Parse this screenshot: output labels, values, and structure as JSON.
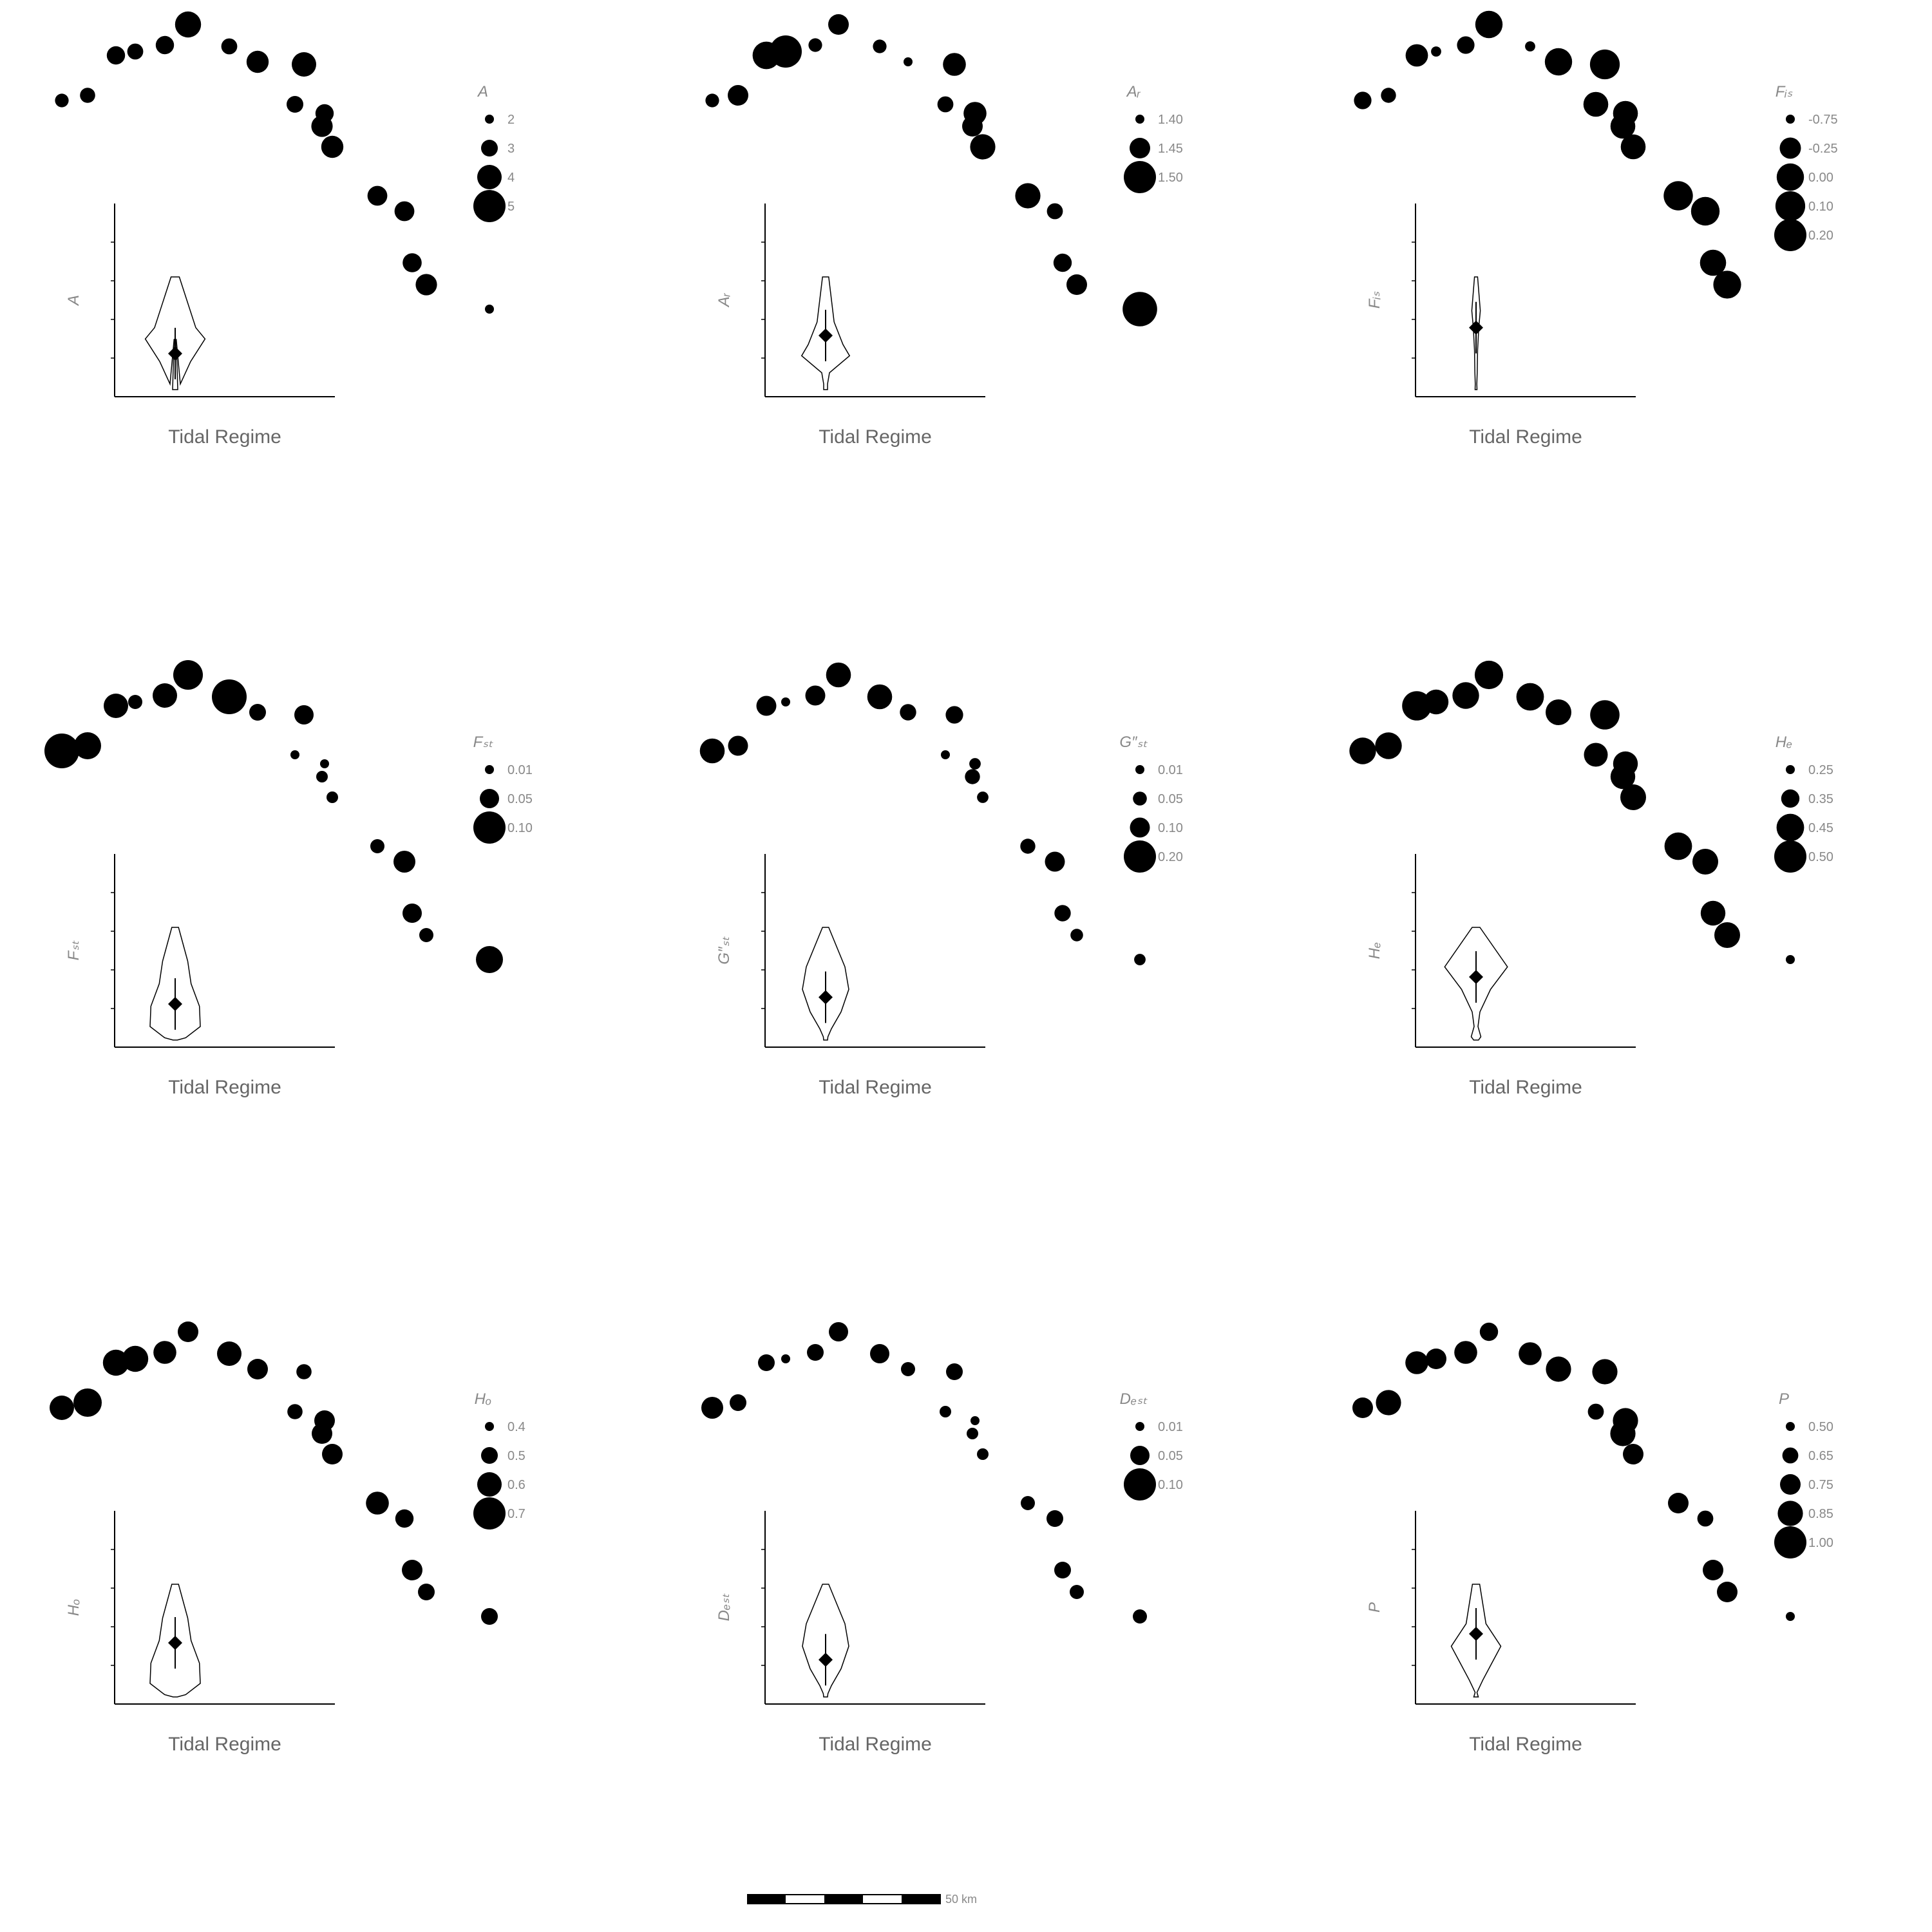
{
  "chart_data": [
    {
      "type": "scatter",
      "legend_title": "A",
      "legend": [
        {
          "label": "2",
          "value": 2
        },
        {
          "label": "3",
          "value": 3
        },
        {
          "label": "4",
          "value": 4
        },
        {
          "label": "5",
          "value": 5
        }
      ],
      "legend_range": [
        2,
        5
      ],
      "sizes": [
        2.6,
        2.8,
        3.2,
        2.9,
        3.2,
        4.2,
        2.9,
        3.7,
        4.0,
        3.0,
        3.2,
        3.6,
        3.7,
        3.4,
        3.4,
        3.3,
        3.6,
        1.4
      ],
      "inset": {
        "ylabel": "A",
        "xlabel": "Tidal Regime",
        "violin_shape": "bulb-low",
        "median": 0.32
      }
    },
    {
      "type": "scatter",
      "legend_title": "Aᵣ",
      "legend": [
        {
          "label": "1.40",
          "value": 1.4
        },
        {
          "label": "1.45",
          "value": 1.45
        },
        {
          "label": "1.50",
          "value": 1.5
        }
      ],
      "legend_range": [
        1.4,
        1.5
      ],
      "sizes": [
        1.42,
        1.45,
        1.48,
        1.5,
        1.42,
        1.45,
        1.42,
        1.4,
        1.46,
        1.43,
        1.46,
        1.45,
        1.47,
        1.47,
        1.43,
        1.44,
        1.45,
        1.51
      ],
      "inset": {
        "ylabel": "Aᵣ",
        "xlabel": "Tidal Regime",
        "violin_shape": "bulb-mid-tail",
        "median": 0.48
      }
    },
    {
      "type": "scatter",
      "legend_title": "Fᵢₛ",
      "legend": [
        {
          "label": "-0.75",
          "value": -0.75
        },
        {
          "label": "-0.25",
          "value": -0.25
        },
        {
          "label": "0.00",
          "value": 0.0
        },
        {
          "label": "0.10",
          "value": 0.1
        },
        {
          "label": "0.20",
          "value": 0.2
        }
      ],
      "legend_range": [
        -0.75,
        0.2
      ],
      "sizes": [
        -0.4,
        -0.5,
        -0.2,
        -0.7,
        -0.4,
        0.0,
        -0.7,
        0.0,
        0.1,
        -0.1,
        -0.1,
        -0.1,
        -0.1,
        0.08,
        0.05,
        -0.05,
        0.02
      ],
      "inset": {
        "ylabel": "Fᵢₛ",
        "xlabel": "Tidal Regime",
        "violin_shape": "narrow-high",
        "median": 0.55
      }
    },
    {
      "type": "scatter",
      "legend_title": "Fₛₜ",
      "legend": [
        {
          "label": "0.01",
          "value": 0.01
        },
        {
          "label": "0.05",
          "value": 0.05
        },
        {
          "label": "0.10",
          "value": 0.1
        }
      ],
      "legend_range": [
        0.01,
        0.1
      ],
      "sizes": [
        0.11,
        0.08,
        0.07,
        0.03,
        0.07,
        0.09,
        0.11,
        0.04,
        0.05,
        0.01,
        0.01,
        0.02,
        0.02,
        0.03,
        0.06,
        0.05,
        0.03,
        0.08
      ],
      "inset": {
        "ylabel": "Fₛₜ",
        "xlabel": "Tidal Regime",
        "violin_shape": "bottle",
        "median": 0.32
      }
    },
    {
      "type": "scatter",
      "legend_title": "G″ₛₜ",
      "legend": [
        {
          "label": "0.01",
          "value": 0.01
        },
        {
          "label": "0.05",
          "value": 0.05
        },
        {
          "label": "0.10",
          "value": 0.1
        },
        {
          "label": "0.20",
          "value": 0.2
        }
      ],
      "legend_range": [
        0.01,
        0.2
      ],
      "sizes": [
        0.14,
        0.1,
        0.1,
        0.01,
        0.1,
        0.14,
        0.14,
        0.07,
        0.08,
        0.01,
        0.03,
        0.06,
        0.03,
        0.06,
        0.1,
        0.07,
        0.04,
        0.03
      ],
      "inset": {
        "ylabel": "G″ₛₜ",
        "xlabel": "Tidal Regime",
        "violin_shape": "bulb",
        "median": 0.38
      }
    },
    {
      "type": "scatter",
      "legend_title": "Hₑ",
      "legend": [
        {
          "label": "0.25",
          "value": 0.25
        },
        {
          "label": "0.35",
          "value": 0.35
        },
        {
          "label": "0.45",
          "value": 0.45
        },
        {
          "label": "0.50",
          "value": 0.5
        }
      ],
      "legend_range": [
        0.25,
        0.5
      ],
      "sizes": [
        0.44,
        0.44,
        0.47,
        0.42,
        0.44,
        0.46,
        0.45,
        0.43,
        0.47,
        0.41,
        0.42,
        0.42,
        0.43,
        0.45,
        0.43,
        0.42,
        0.43,
        0.24
      ],
      "inset": {
        "ylabel": "Hₑ",
        "xlabel": "Tidal Regime",
        "violin_shape": "top-heavy",
        "median": 0.56
      }
    },
    {
      "type": "scatter",
      "legend_title": "Hₒ",
      "legend": [
        {
          "label": "0.4",
          "value": 0.4
        },
        {
          "label": "0.5",
          "value": 0.5
        },
        {
          "label": "0.6",
          "value": 0.6
        },
        {
          "label": "0.7",
          "value": 0.7
        }
      ],
      "legend_range": [
        0.4,
        0.7
      ],
      "sizes": [
        0.6,
        0.65,
        0.62,
        0.62,
        0.58,
        0.55,
        0.6,
        0.55,
        0.48,
        0.48,
        0.55,
        0.55,
        0.55,
        0.58,
        0.52,
        0.55,
        0.5,
        0.5
      ],
      "inset": {
        "ylabel": "Hₒ",
        "xlabel": "Tidal Regime",
        "violin_shape": "bottle",
        "median": 0.48
      }
    },
    {
      "type": "scatter",
      "legend_title": "Dₑₛₜ",
      "legend": [
        {
          "label": "0.01",
          "value": 0.01
        },
        {
          "label": "0.05",
          "value": 0.05
        },
        {
          "label": "0.10",
          "value": 0.1
        }
      ],
      "legend_range": [
        0.01,
        0.1
      ],
      "sizes": [
        0.06,
        0.04,
        0.04,
        0.01,
        0.04,
        0.05,
        0.05,
        0.03,
        0.04,
        0.02,
        0.01,
        0.02,
        0.02,
        0.03,
        0.04,
        0.04,
        0.03,
        0.03
      ],
      "inset": {
        "ylabel": "Dₑₛₜ",
        "xlabel": "Tidal Regime",
        "violin_shape": "bulb",
        "median": 0.33
      }
    },
    {
      "type": "scatter",
      "legend_title": "P",
      "legend": [
        {
          "label": "0.50",
          "value": 0.5
        },
        {
          "label": "0.65",
          "value": 0.65
        },
        {
          "label": "0.75",
          "value": 0.75
        },
        {
          "label": "0.85",
          "value": 0.85
        },
        {
          "label": "1.00",
          "value": 1.0
        }
      ],
      "legend_range": [
        0.5,
        1.0
      ],
      "sizes": [
        0.75,
        0.85,
        0.8,
        0.75,
        0.8,
        0.7,
        0.8,
        0.85,
        0.85,
        0.65,
        0.85,
        0.85,
        0.75,
        0.75,
        0.65,
        0.75,
        0.75,
        0.5
      ],
      "inset": {
        "ylabel": "P",
        "xlabel": "Tidal Regime",
        "violin_shape": "multi-bulge",
        "median": 0.56
      }
    }
  ],
  "scalebar": {
    "label": "50 km",
    "segments": 5
  }
}
